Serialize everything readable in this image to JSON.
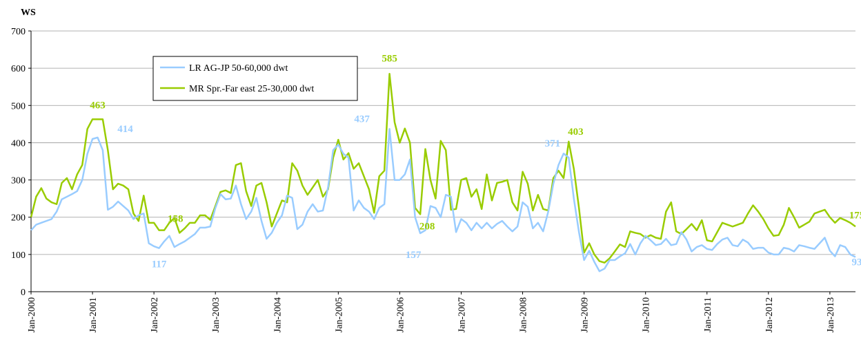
{
  "chart_data": {
    "type": "line",
    "y_label": "WS",
    "ylim": [
      0,
      700
    ],
    "yticks": [
      0,
      100,
      200,
      300,
      400,
      500,
      600,
      700
    ],
    "grid": true,
    "legend": "upper left",
    "categories": [
      "Jan-2000",
      null,
      null,
      null,
      null,
      null,
      null,
      null,
      null,
      null,
      null,
      null,
      "Jan-2001",
      null,
      null,
      null,
      null,
      null,
      null,
      null,
      null,
      null,
      null,
      null,
      "Jan-2002",
      null,
      null,
      null,
      null,
      null,
      null,
      null,
      null,
      null,
      null,
      null,
      "Jan-2003",
      null,
      null,
      null,
      null,
      null,
      null,
      null,
      null,
      null,
      null,
      null,
      "Jan-2004",
      null,
      null,
      null,
      null,
      null,
      null,
      null,
      null,
      null,
      null,
      null,
      "Jan-2005",
      null,
      null,
      null,
      null,
      null,
      null,
      null,
      null,
      null,
      null,
      null,
      "Jan-2006",
      null,
      null,
      null,
      null,
      null,
      null,
      null,
      null,
      null,
      null,
      null,
      "Jan-2007",
      null,
      null,
      null,
      null,
      null,
      null,
      null,
      null,
      null,
      null,
      null,
      "Jan-2008",
      null,
      null,
      null,
      null,
      null,
      null,
      null,
      null,
      null,
      null,
      null,
      "Jan-2009",
      null,
      null,
      null,
      null,
      null,
      null,
      null,
      null,
      null,
      null,
      null,
      "Jan-2010",
      null,
      null,
      null,
      null,
      null,
      null,
      null,
      null,
      null,
      null,
      null,
      "Jan-2011",
      null,
      null,
      null,
      null,
      null,
      null,
      null,
      null,
      null,
      null,
      null,
      "Jan-2012",
      null,
      null,
      null,
      null,
      null,
      null,
      null,
      null,
      null,
      null,
      null,
      "Jan-2013",
      null,
      null,
      null,
      null,
      null
    ],
    "series": [
      {
        "name": "LR AG-JP 50-60,000 dwt",
        "color": "#99ccff",
        "values": [
          165,
          180,
          185,
          190,
          195,
          215,
          248,
          255,
          262,
          270,
          300,
          370,
          410,
          414,
          380,
          220,
          228,
          242,
          230,
          218,
          195,
          205,
          210,
          130,
          122,
          117,
          135,
          150,
          120,
          128,
          135,
          145,
          155,
          172,
          172,
          175,
          225,
          262,
          248,
          250,
          285,
          235,
          195,
          215,
          252,
          190,
          142,
          158,
          185,
          205,
          258,
          252,
          168,
          180,
          215,
          235,
          215,
          218,
          280,
          380,
          395,
          370,
          360,
          218,
          245,
          225,
          215,
          195,
          225,
          235,
          437,
          300,
          300,
          315,
          355,
          200,
          157,
          165,
          230,
          225,
          200,
          260,
          255,
          160,
          195,
          185,
          165,
          185,
          170,
          185,
          170,
          182,
          190,
          175,
          162,
          175,
          240,
          228,
          170,
          185,
          162,
          215,
          290,
          340,
          371,
          360,
          250,
          160,
          85,
          110,
          80,
          55,
          62,
          85,
          85,
          95,
          103,
          128,
          100,
          130,
          150,
          138,
          125,
          128,
          142,
          125,
          128,
          160,
          140,
          108,
          120,
          125,
          115,
          112,
          128,
          140,
          145,
          125,
          122,
          140,
          132,
          115,
          118,
          118,
          105,
          100,
          100,
          118,
          115,
          108,
          125,
          122,
          118,
          115,
          130,
          145,
          110,
          95,
          125,
          120,
          100,
          93
        ]
      },
      {
        "name": "MR Spr.-Far east 25-30,000 dwt",
        "color": "#99cc00",
        "values": [
          200,
          255,
          278,
          250,
          240,
          235,
          292,
          305,
          275,
          315,
          340,
          437,
          463,
          463,
          463,
          380,
          275,
          290,
          285,
          275,
          210,
          190,
          258,
          185,
          185,
          165,
          165,
          185,
          198,
          158,
          170,
          185,
          185,
          205,
          205,
          193,
          230,
          268,
          272,
          265,
          340,
          345,
          270,
          230,
          285,
          292,
          240,
          175,
          210,
          245,
          240,
          345,
          325,
          285,
          260,
          280,
          300,
          255,
          275,
          360,
          408,
          355,
          372,
          330,
          345,
          310,
          275,
          212,
          310,
          325,
          585,
          455,
          400,
          438,
          400,
          225,
          208,
          383,
          300,
          250,
          405,
          380,
          220,
          222,
          300,
          305,
          255,
          275,
          222,
          315,
          245,
          292,
          295,
          300,
          240,
          218,
          322,
          290,
          218,
          260,
          222,
          218,
          305,
          325,
          305,
          403,
          330,
          225,
          105,
          130,
          100,
          82,
          78,
          90,
          108,
          127,
          120,
          162,
          158,
          155,
          145,
          152,
          145,
          142,
          215,
          240,
          162,
          155,
          168,
          182,
          165,
          192,
          138,
          135,
          160,
          185,
          180,
          175,
          180,
          185,
          210,
          232,
          215,
          195,
          170,
          150,
          152,
          180,
          225,
          200,
          172,
          180,
          188,
          210,
          215,
          220,
          200,
          185,
          198,
          192,
          185,
          175
        ]
      }
    ]
  }
}
